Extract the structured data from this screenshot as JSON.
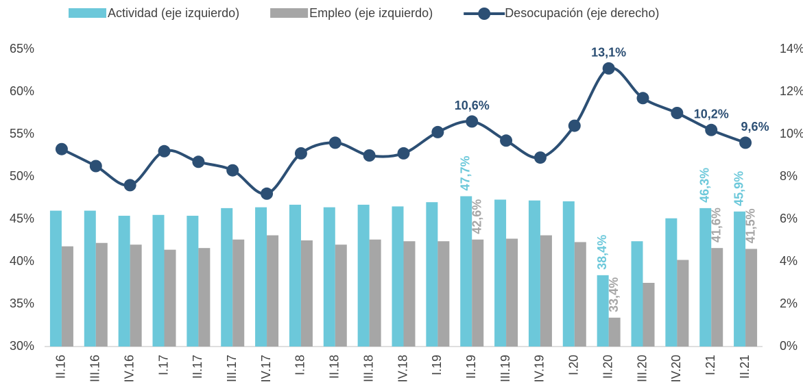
{
  "chart_data": {
    "type": "bar_line",
    "categories": [
      "II.16",
      "III.16",
      "IV.16",
      "I.17",
      "II.17",
      "III.17",
      "IV.17",
      "I.18",
      "II.18",
      "III.18",
      "IV.18",
      "I.19",
      "II.19",
      "III.19",
      "IV.19",
      "I.20",
      "II.20",
      "III.20",
      "IV.20",
      "I.21",
      "II.21"
    ],
    "series": [
      {
        "name": "Actividad (eje izquierdo)",
        "type": "bar",
        "color": "#6cc8da",
        "values": [
          46.0,
          46.0,
          45.4,
          45.5,
          45.4,
          46.3,
          46.4,
          46.7,
          46.4,
          46.7,
          46.5,
          47.0,
          47.7,
          47.3,
          47.2,
          47.1,
          38.4,
          42.4,
          45.1,
          46.3,
          45.9
        ],
        "value_labels": [
          null,
          null,
          null,
          null,
          null,
          null,
          null,
          null,
          null,
          null,
          null,
          null,
          "47,7%",
          null,
          null,
          null,
          "38,4%",
          null,
          null,
          "46,3%",
          "45,9%"
        ]
      },
      {
        "name": "Empleo (eje izquierdo)",
        "type": "bar",
        "color": "#a6a6a6",
        "values": [
          41.8,
          42.2,
          42.0,
          41.4,
          41.6,
          42.6,
          43.1,
          42.5,
          42.0,
          42.6,
          42.4,
          42.4,
          42.6,
          42.7,
          43.1,
          42.3,
          33.4,
          37.5,
          40.2,
          41.6,
          41.5
        ],
        "value_labels": [
          null,
          null,
          null,
          null,
          null,
          null,
          null,
          null,
          null,
          null,
          null,
          null,
          "42,6%",
          null,
          null,
          null,
          "33,4%",
          null,
          null,
          "41,6%",
          "41,5%"
        ]
      },
      {
        "name": "Desocupación (eje derecho)",
        "type": "line",
        "axis": "y2",
        "color": "#2c4f74",
        "values": [
          9.3,
          8.5,
          7.6,
          9.2,
          8.7,
          8.3,
          7.2,
          9.1,
          9.6,
          9.0,
          9.1,
          10.1,
          10.6,
          9.7,
          8.9,
          10.4,
          13.1,
          11.7,
          11.0,
          10.2,
          9.6
        ],
        "value_labels": [
          null,
          null,
          null,
          null,
          null,
          null,
          null,
          null,
          null,
          null,
          null,
          null,
          "10,6%",
          null,
          null,
          null,
          "13,1%",
          null,
          null,
          "10,2%",
          "9,6%"
        ]
      }
    ],
    "ylim": [
      30,
      65
    ],
    "yticks": [
      {
        "value": 30,
        "label": "30%"
      },
      {
        "value": 35,
        "label": "35%"
      },
      {
        "value": 40,
        "label": "40%"
      },
      {
        "value": 45,
        "label": "45%"
      },
      {
        "value": 50,
        "label": "50%"
      },
      {
        "value": 55,
        "label": "55%"
      },
      {
        "value": 60,
        "label": "60%"
      },
      {
        "value": 65,
        "label": "65%"
      }
    ],
    "y2lim": [
      0,
      14
    ],
    "y2ticks": [
      {
        "value": 0,
        "label": "0%"
      },
      {
        "value": 2,
        "label": "2%"
      },
      {
        "value": 4,
        "label": "4%"
      },
      {
        "value": 6,
        "label": "6%"
      },
      {
        "value": 8,
        "label": "8%"
      },
      {
        "value": 10,
        "label": "10%"
      },
      {
        "value": 12,
        "label": "12%"
      },
      {
        "value": 14,
        "label": "14%"
      }
    ],
    "legend": "top"
  }
}
